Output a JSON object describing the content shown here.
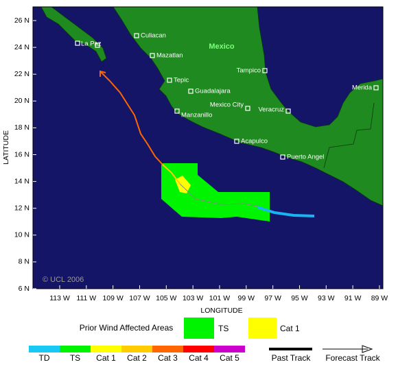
{
  "map": {
    "x_axis_label": "LONGITUDE",
    "y_axis_label": "LATITUDE",
    "x_ticks": [
      "113 W",
      "111 W",
      "109 W",
      "107 W",
      "105 W",
      "103 W",
      "101 W",
      "99 W",
      "97 W",
      "95 W",
      "93 W",
      "91 W",
      "89 W"
    ],
    "y_ticks": [
      "26 N",
      "24 N",
      "22 N",
      "20 N",
      "18 N",
      "16 N",
      "14 N",
      "12 N",
      "10 N",
      "8 N",
      "6 N"
    ],
    "country_label": "Mexico",
    "cities": [
      "Culiacan",
      "La Paz",
      "Mazatlan",
      "Tampico",
      "Merida",
      "Tepic",
      "Guadalajara",
      "Mexico City",
      "Veracruz",
      "Manzanillo",
      "Acapulco",
      "Puerto Angel"
    ],
    "credit": "© UCL 2006"
  },
  "legend": {
    "title": "Prior Wind Affected Areas",
    "areas": [
      "TS",
      "Cat 1"
    ],
    "categories": [
      "TD",
      "TS",
      "Cat 1",
      "Cat 2",
      "Cat 3",
      "Cat 4",
      "Cat 5"
    ],
    "tracks": [
      "Past Track",
      "Forecast Track"
    ]
  }
}
